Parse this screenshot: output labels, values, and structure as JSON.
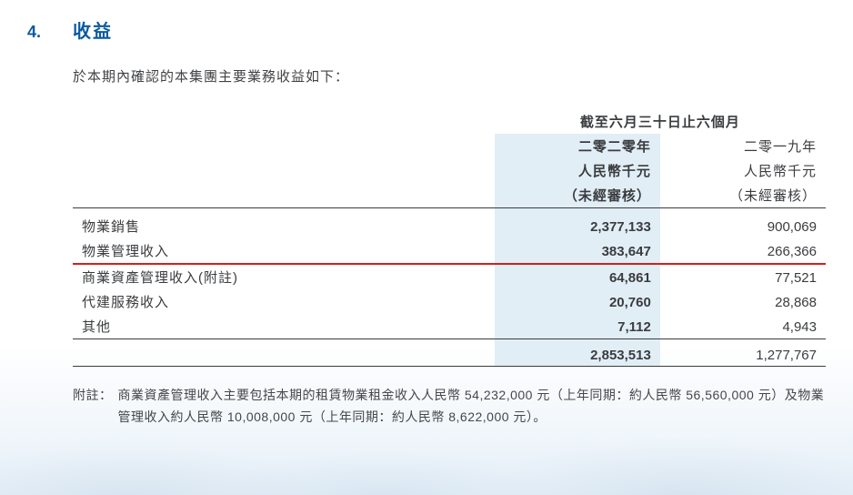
{
  "colors": {
    "heading": "#0a5aa0",
    "text": "#3a3c3f",
    "highlight_bg": "#e2eef6",
    "redline": "#d21f1f",
    "rule": "#3a3c3f"
  },
  "section": {
    "number": "4.",
    "title": "收益"
  },
  "intro": "於本期內確認的本集團主要業務收益如下：",
  "table": {
    "period_header": "截至六月三十日止六個月",
    "col_headers": {
      "year_current": "二零二零年",
      "year_prior": "二零一九年",
      "unit_current": "人民幣千元",
      "unit_prior": "人民幣千元",
      "audit_current": "（未經審核）",
      "audit_prior": "（未經審核）"
    },
    "rows": [
      {
        "label": "物業銷售",
        "current": "2,377,133",
        "prior": "900,069"
      },
      {
        "label": "物業管理收入",
        "current": "383,647",
        "prior": "266,366"
      },
      {
        "label": "商業資產管理收入(附註)",
        "current": "64,861",
        "prior": "77,521"
      },
      {
        "label": "代建服務收入",
        "current": "20,760",
        "prior": "28,868"
      },
      {
        "label": "其他",
        "current": "7,112",
        "prior": "4,943"
      }
    ],
    "total": {
      "current": "2,853,513",
      "prior": "1,277,767"
    }
  },
  "footnote": {
    "label": "附註：",
    "body": "商業資產管理收入主要包括本期的租賃物業租金收入人民幣 54,232,000 元（上年同期：約人民幣 56,560,000 元）及物業管理收入約人民幣 10,008,000 元（上年同期：約人民幣 8,622,000 元）。"
  }
}
